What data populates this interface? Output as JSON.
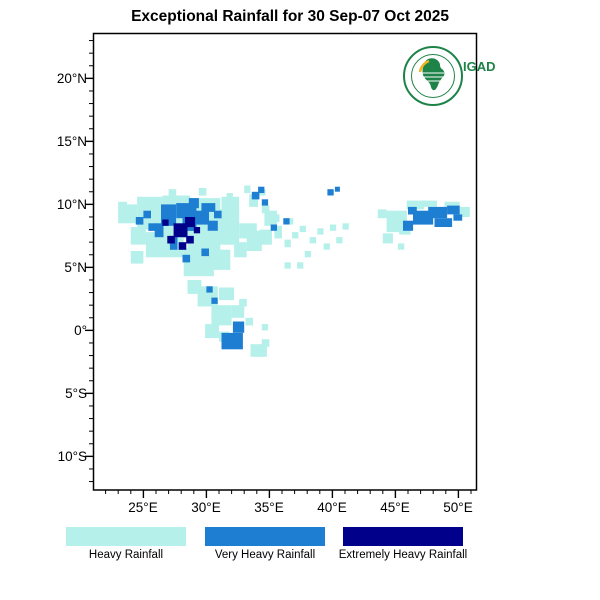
{
  "title": "Exceptional Rainfall for 30 Sep-07 Oct 2025",
  "logo": {
    "text": "IGAD"
  },
  "axes": {
    "lat_ticks": [
      "20°N",
      "15°N",
      "10°N",
      "5°N",
      "0°",
      "5°S",
      "10°S"
    ],
    "lon_ticks": [
      "25°E",
      "30°E",
      "35°E",
      "40°E",
      "45°E",
      "50°E"
    ]
  },
  "legend": {
    "items": [
      {
        "label": "Heavy Rainfall",
        "color": "#b6f0ea"
      },
      {
        "label": "Very Heavy Rainfall",
        "color": "#1e7fd2"
      },
      {
        "label": "Extremely Heavy Rainfall",
        "color": "#00008b"
      }
    ]
  },
  "map": {
    "rain_cells": {
      "heavy": [
        [
          23.0,
          8.5,
          1.5,
          1.5
        ],
        [
          23.0,
          9.4,
          0.7,
          0.8
        ],
        [
          24.5,
          8.0,
          2.0,
          2.6
        ],
        [
          24.0,
          6.8,
          1.2,
          1.4
        ],
        [
          26.5,
          7.3,
          2.2,
          3.4
        ],
        [
          28.5,
          6.3,
          2.6,
          4.2
        ],
        [
          25.2,
          5.8,
          3.0,
          2.0
        ],
        [
          28.2,
          4.3,
          2.4,
          2.2
        ],
        [
          30.8,
          6.8,
          1.8,
          2.8
        ],
        [
          31.2,
          9.0,
          1.4,
          1.6
        ],
        [
          32.6,
          7.3,
          1.4,
          1.2
        ],
        [
          30.5,
          4.8,
          1.4,
          1.6
        ],
        [
          24.0,
          5.3,
          1.0,
          1.0
        ],
        [
          27.0,
          10.6,
          0.6,
          0.6
        ],
        [
          29.4,
          10.7,
          0.6,
          0.6
        ],
        [
          31.6,
          10.4,
          0.5,
          0.5
        ],
        [
          33.0,
          10.9,
          0.5,
          0.6
        ],
        [
          33.4,
          9.8,
          0.7,
          1.0
        ],
        [
          34.2,
          10.7,
          0.5,
          0.5
        ],
        [
          32.2,
          5.8,
          1.0,
          1.2
        ],
        [
          33.2,
          6.3,
          1.2,
          1.6
        ],
        [
          34.2,
          6.8,
          1.0,
          1.2
        ],
        [
          34.6,
          8.3,
          1.0,
          1.2
        ],
        [
          35.4,
          7.3,
          0.6,
          1.0
        ],
        [
          36.2,
          6.6,
          0.5,
          0.6
        ],
        [
          36.8,
          7.3,
          0.5,
          0.5
        ],
        [
          37.4,
          7.8,
          0.5,
          0.5
        ],
        [
          37.8,
          5.8,
          0.5,
          0.5
        ],
        [
          38.2,
          6.9,
          0.5,
          0.5
        ],
        [
          38.8,
          7.6,
          0.5,
          0.5
        ],
        [
          39.3,
          6.4,
          0.5,
          0.5
        ],
        [
          39.8,
          7.9,
          0.5,
          0.5
        ],
        [
          40.3,
          6.9,
          0.5,
          0.5
        ],
        [
          40.8,
          8.0,
          0.5,
          0.5
        ],
        [
          36.2,
          4.9,
          0.5,
          0.5
        ],
        [
          37.2,
          4.9,
          0.5,
          0.5
        ],
        [
          35.2,
          8.6,
          0.6,
          0.6
        ],
        [
          36.4,
          8.4,
          0.5,
          0.5
        ],
        [
          34.4,
          9.3,
          0.6,
          0.6
        ],
        [
          29.3,
          1.9,
          1.6,
          1.6
        ],
        [
          30.4,
          0.4,
          1.6,
          1.6
        ],
        [
          31.0,
          2.4,
          1.2,
          1.0
        ],
        [
          32.0,
          1.0,
          1.0,
          1.0
        ],
        [
          29.9,
          -0.6,
          1.1,
          1.1
        ],
        [
          28.5,
          2.9,
          1.1,
          1.1
        ],
        [
          32.6,
          1.9,
          0.6,
          0.6
        ],
        [
          33.1,
          0.4,
          0.6,
          0.6
        ],
        [
          34.4,
          0.0,
          0.5,
          0.5
        ],
        [
          33.5,
          -2.1,
          1.3,
          1.0
        ],
        [
          34.4,
          -1.3,
          0.6,
          0.6
        ],
        [
          31.0,
          -0.9,
          0.8,
          0.8
        ],
        [
          44.3,
          7.8,
          1.6,
          1.7
        ],
        [
          45.9,
          9.6,
          1.4,
          0.7
        ],
        [
          43.6,
          8.9,
          0.7,
          0.7
        ],
        [
          47.1,
          9.8,
          1.2,
          0.5
        ],
        [
          48.9,
          9.6,
          1.2,
          0.6
        ],
        [
          50.1,
          9.0,
          0.8,
          0.8
        ],
        [
          44.0,
          6.9,
          0.8,
          0.8
        ],
        [
          45.2,
          6.4,
          0.5,
          0.5
        ],
        [
          45.3,
          7.6,
          0.9,
          0.9
        ]
      ],
      "very_heavy": [
        [
          26.4,
          8.3,
          1.2,
          1.7
        ],
        [
          27.6,
          8.9,
          1.6,
          1.2
        ],
        [
          25.9,
          7.4,
          0.7,
          1.1
        ],
        [
          28.1,
          7.9,
          1.1,
          1.1
        ],
        [
          29.1,
          8.4,
          1.1,
          1.1
        ],
        [
          29.6,
          9.4,
          1.1,
          0.7
        ],
        [
          25.4,
          7.9,
          0.6,
          0.6
        ],
        [
          28.6,
          9.7,
          0.8,
          0.8
        ],
        [
          30.1,
          7.9,
          0.8,
          0.8
        ],
        [
          27.1,
          6.4,
          0.6,
          1.1
        ],
        [
          28.1,
          5.4,
          0.6,
          0.6
        ],
        [
          29.6,
          5.9,
          0.6,
          0.6
        ],
        [
          30.6,
          8.9,
          0.6,
          0.6
        ],
        [
          25.0,
          8.9,
          0.6,
          0.6
        ],
        [
          24.4,
          8.4,
          0.6,
          0.6
        ],
        [
          33.6,
          10.4,
          0.6,
          0.6
        ],
        [
          34.1,
          10.9,
          0.5,
          0.5
        ],
        [
          34.4,
          9.9,
          0.5,
          0.5
        ],
        [
          35.1,
          7.9,
          0.5,
          0.5
        ],
        [
          36.1,
          8.4,
          0.5,
          0.5
        ],
        [
          39.6,
          10.7,
          0.5,
          0.5
        ],
        [
          40.2,
          11.0,
          0.4,
          0.4
        ],
        [
          46.4,
          8.4,
          1.6,
          1.1
        ],
        [
          47.6,
          8.9,
          1.5,
          0.9
        ],
        [
          48.1,
          8.2,
          1.4,
          0.7
        ],
        [
          49.1,
          9.2,
          1.0,
          0.7
        ],
        [
          45.6,
          7.9,
          0.8,
          0.8
        ],
        [
          49.6,
          8.7,
          0.7,
          0.5
        ],
        [
          46.0,
          9.2,
          0.7,
          0.6
        ],
        [
          31.2,
          -1.5,
          1.7,
          1.3
        ],
        [
          32.1,
          -0.2,
          0.9,
          0.9
        ],
        [
          30.4,
          2.1,
          0.5,
          0.5
        ],
        [
          30.0,
          3.0,
          0.5,
          0.5
        ]
      ],
      "extreme": [
        [
          27.4,
          7.4,
          1.1,
          1.1
        ],
        [
          28.3,
          8.2,
          0.8,
          0.8
        ],
        [
          26.9,
          6.9,
          0.6,
          0.6
        ],
        [
          28.4,
          6.9,
          0.6,
          0.6
        ],
        [
          27.8,
          6.4,
          0.6,
          0.6
        ],
        [
          29.0,
          7.7,
          0.5,
          0.5
        ],
        [
          26.5,
          8.3,
          0.5,
          0.5
        ]
      ]
    }
  }
}
